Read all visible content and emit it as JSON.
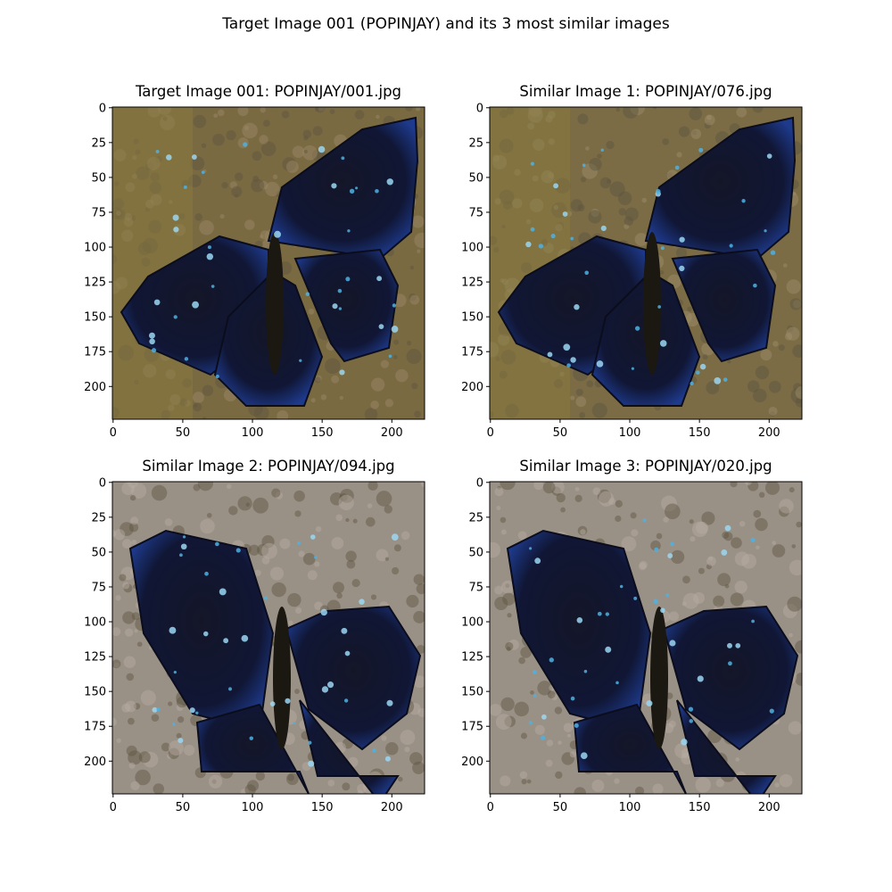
{
  "figure": {
    "title": "Target Image 001 (POPINJAY) and its 3 most similar images"
  },
  "axes": {
    "ticks": [
      "0",
      "25",
      "50",
      "75",
      "100",
      "125",
      "150",
      "175",
      "200"
    ],
    "x_ticks": [
      "0",
      "50",
      "100",
      "150",
      "200"
    ]
  },
  "panels": [
    {
      "title": "Target Image 001: POPINJAY/001.jpg",
      "bg": "#7a6a42",
      "bg2": "#9b8a68",
      "butterfly": "spread-diag"
    },
    {
      "title": "Similar Image 1: POPINJAY/076.jpg",
      "bg": "#7b6c45",
      "bg2": "#9f906c",
      "butterfly": "spread-diag"
    },
    {
      "title": "Similar Image 2: POPINJAY/094.jpg",
      "bg": "#9a9186",
      "bg2": "#b7ada3",
      "butterfly": "spread-wide"
    },
    {
      "title": "Similar Image 3: POPINJAY/020.jpg",
      "bg": "#9a9186",
      "bg2": "#b8aea4",
      "butterfly": "spread-wide"
    }
  ]
}
